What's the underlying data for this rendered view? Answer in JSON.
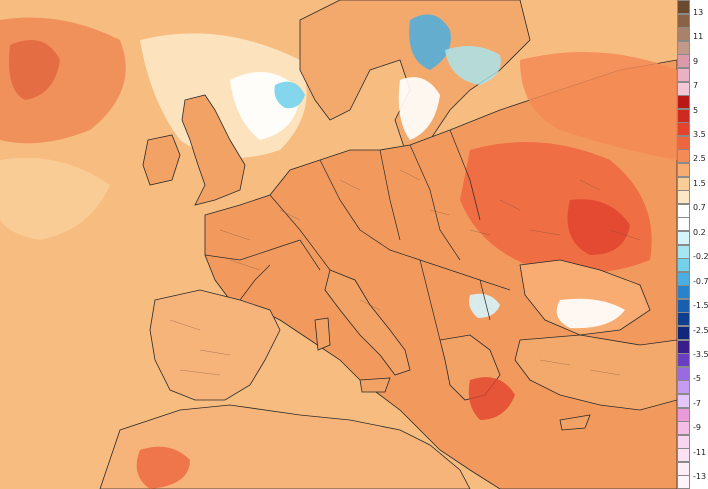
{
  "map": {
    "region": "Europe",
    "land_color": "#f2dcb5",
    "ocean_color": "#f7bc7f",
    "border_color": "#2a2a2a"
  },
  "legend": {
    "ticks": [
      "13",
      "11",
      "9",
      "7",
      "5",
      "3.5",
      "2.5",
      "1.5",
      "0.7",
      "0.2",
      "-0.2",
      "-0.7",
      "-1.5",
      "-2.5",
      "-3.5",
      "-5",
      "-7",
      "-9",
      "-11",
      "-13"
    ],
    "colors": [
      "#6b4a2f",
      "#8a6246",
      "#a8826a",
      "#c39a8a",
      "#db9aaa",
      "#eab0c4",
      "#f3c6d8",
      "#ba1717",
      "#cf2a22",
      "#e2442e",
      "#ee6640",
      "#f48a55",
      "#f8ac71",
      "#fbcd96",
      "#fde7c4",
      "#ffffff",
      "#ffffff",
      "#d6f4fb",
      "#a6e6f2",
      "#75d1ea",
      "#4aaee0",
      "#2a82cb",
      "#1a5fae",
      "#0d3f8e",
      "#13277a",
      "#3a1e8a",
      "#6a3ec0",
      "#9a6be0",
      "#c59cf0",
      "#e3c6fb",
      "#ea9ad8",
      "#f3bde6",
      "#f8d6ef",
      "#fbe2f3",
      "#fdeef8",
      "#fef4fb"
    ]
  }
}
